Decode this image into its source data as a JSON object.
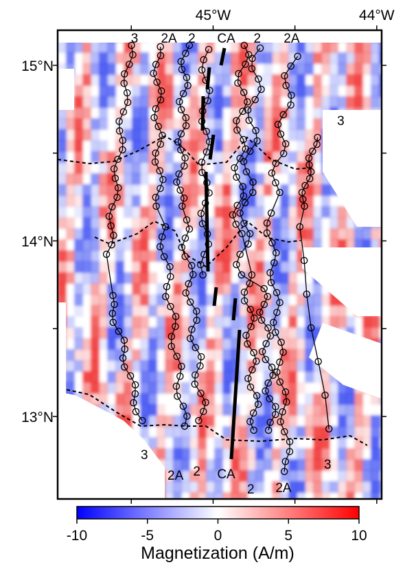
{
  "map": {
    "longitude_labels": [
      {
        "id": "lon-45",
        "text": "45°W",
        "lon": -45.0
      },
      {
        "id": "lon-44",
        "text": "44°W",
        "lon": -44.0
      }
    ],
    "latitude_labels": [
      {
        "id": "lat-15",
        "text": "15°N",
        "lat": 15.0
      },
      {
        "id": "lat-14",
        "text": "14°N",
        "lat": 14.0
      },
      {
        "id": "lat-13",
        "text": "13°N",
        "lat": 13.0
      }
    ],
    "extent": {
      "lon_min": -45.95,
      "lon_max": -43.97,
      "lat_min": 12.53,
      "lat_max": 15.2
    },
    "isochron_labels_top": [
      {
        "text": "3",
        "lon": -45.48
      },
      {
        "text": "2A",
        "lon": -45.27
      },
      {
        "text": "2",
        "lon": -45.13
      },
      {
        "text": "CA",
        "lon": -44.92
      },
      {
        "text": "2",
        "lon": -44.73
      },
      {
        "text": "2A",
        "lon": -44.52
      },
      {
        "text": "3",
        "lon": -44.22,
        "lat": 14.66
      }
    ],
    "isochron_labels_bottom": [
      {
        "text": "3",
        "lon": -45.42
      },
      {
        "text": "2A",
        "lon": -45.23
      },
      {
        "text": "2",
        "lon": -45.1
      },
      {
        "text": "CA",
        "lon": -44.92
      },
      {
        "text": "2",
        "lon": -44.77
      },
      {
        "text": "2A",
        "lon": -44.57
      },
      {
        "text": "3",
        "lon": -44.3
      }
    ],
    "colors": {
      "negative": "#0000ff",
      "zero": "#ffffff",
      "positive": "#ff0000",
      "lines": "#000000"
    }
  },
  "colorbar": {
    "ticks": [
      "-10",
      "-5",
      "0",
      "5",
      "10"
    ],
    "tick_values": [
      -10,
      -5,
      0,
      5,
      10
    ],
    "range": [
      -10,
      10
    ],
    "title": "Magnetization (A/m)"
  }
}
